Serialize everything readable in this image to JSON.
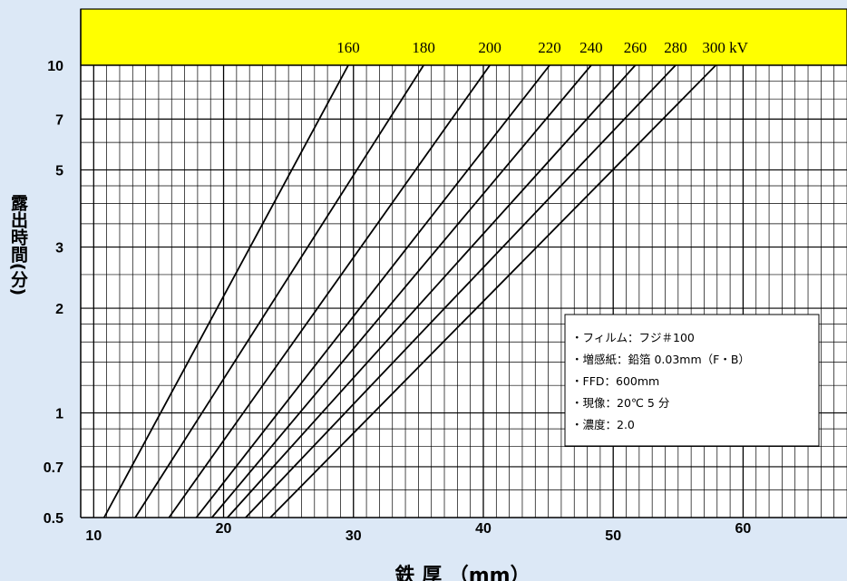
{
  "chart_data": {
    "type": "line",
    "title": "",
    "xlabel": "鉄 厚 （mm）",
    "ylabel": "露出時間(分)",
    "y_scale": "log",
    "xlim": [
      9,
      68
    ],
    "ylim": [
      0.5,
      10
    ],
    "x_ticks": [
      "10",
      "20",
      "30",
      "40",
      "50",
      "60"
    ],
    "y_ticks": [
      "0.5",
      "0.7",
      "1",
      "2",
      "3",
      "5",
      "7",
      "10"
    ],
    "grid": true,
    "header_band_color": "#ffff00",
    "background_color": "#dce8f6",
    "kv_unit_label": "300 kV",
    "series": [
      {
        "name": "160",
        "x": [
          10.8,
          29.6
        ],
        "y": [
          0.5,
          10
        ]
      },
      {
        "name": "180",
        "x": [
          13.2,
          35.4
        ],
        "y": [
          0.5,
          10
        ]
      },
      {
        "name": "200",
        "x": [
          15.8,
          40.5
        ],
        "y": [
          0.5,
          10
        ]
      },
      {
        "name": "220",
        "x": [
          17.9,
          45.1
        ],
        "y": [
          0.5,
          10
        ]
      },
      {
        "name": "240",
        "x": [
          19.1,
          48.3
        ],
        "y": [
          0.5,
          10
        ]
      },
      {
        "name": "260",
        "x": [
          20.3,
          51.7
        ],
        "y": [
          0.5,
          10
        ]
      },
      {
        "name": "280",
        "x": [
          21.7,
          54.8
        ],
        "y": [
          0.5,
          10
        ]
      },
      {
        "name": "300",
        "x": [
          23.6,
          57.9
        ],
        "y": [
          0.5,
          10
        ]
      }
    ],
    "legend_notes": [
      "・フィルム：フジ＃100",
      "・増感紙：鉛箔 0.03mm（F・B）",
      "・FFD：600mm",
      "・現像：20℃ 5 分",
      "・濃度：2.0"
    ]
  }
}
